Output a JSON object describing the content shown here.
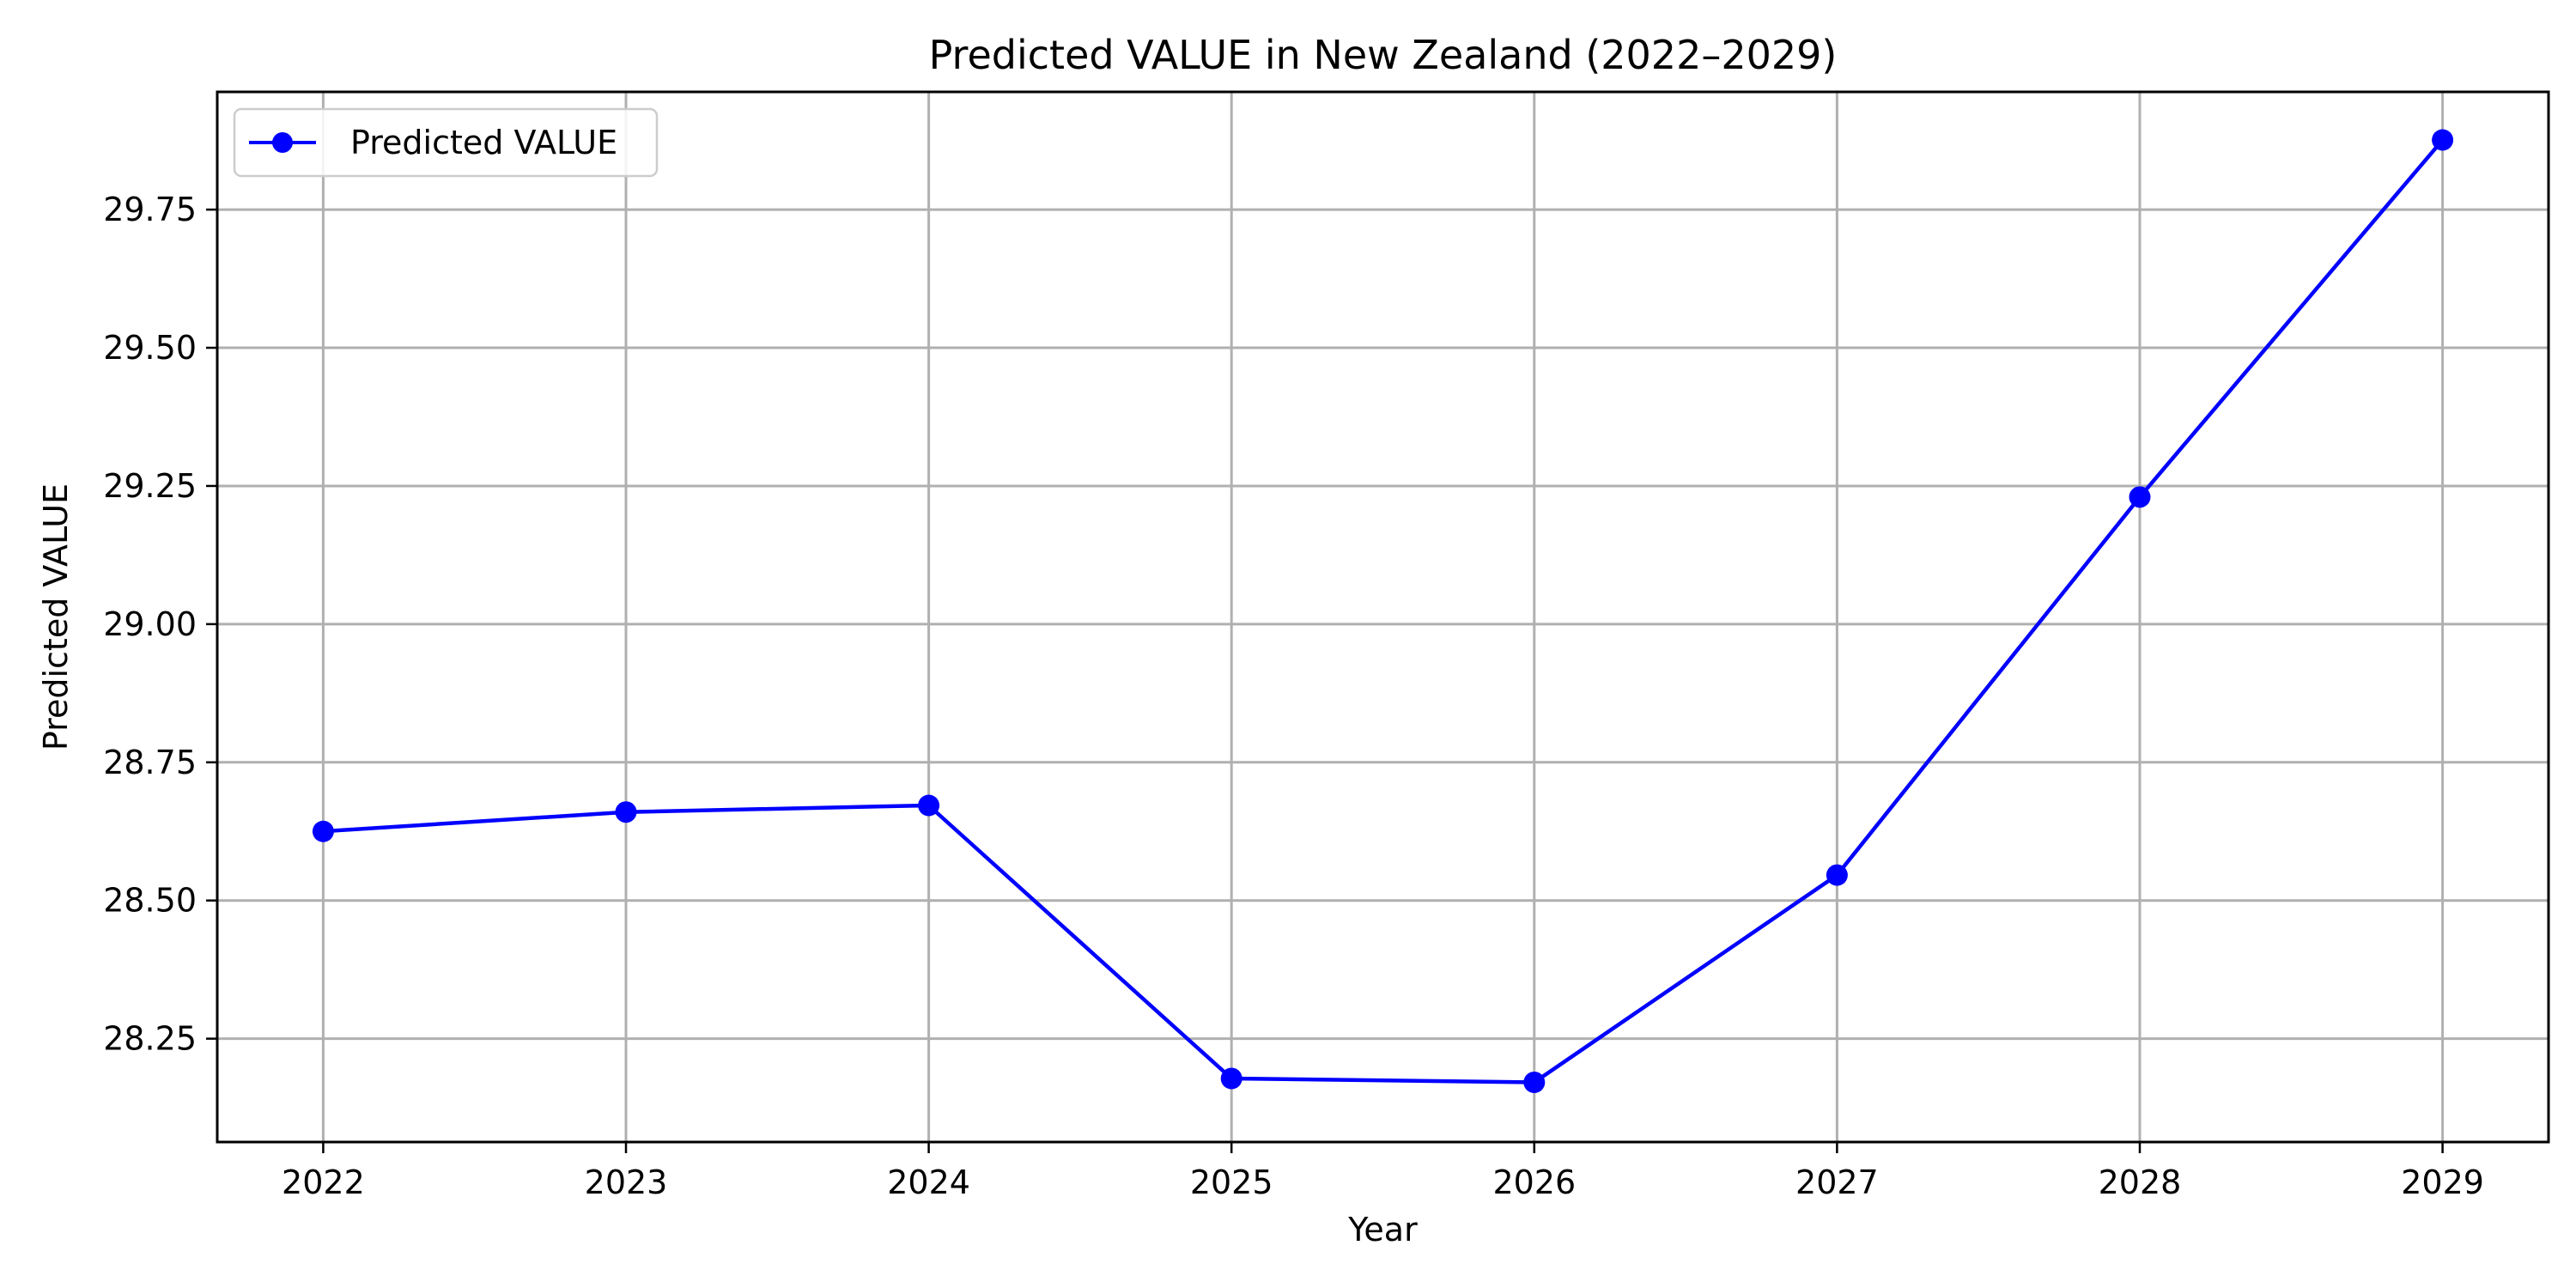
{
  "chart_data": {
    "type": "line",
    "title": "Predicted VALUE in New Zealand (2022–2029)",
    "xlabel": "Year",
    "ylabel": "Predicted VALUE",
    "x": [
      2022,
      2023,
      2024,
      2025,
      2026,
      2027,
      2028,
      2029
    ],
    "x_tick_labels": [
      "2022",
      "2023",
      "2024",
      "2025",
      "2026",
      "2027",
      "2028",
      "2029"
    ],
    "xlim": [
      2021.65,
      2029.35
    ],
    "ylim": [
      28.063,
      29.963
    ],
    "y_ticks": [
      28.25,
      28.5,
      28.75,
      29.0,
      29.25,
      29.5,
      29.75
    ],
    "y_tick_labels": [
      "28.25",
      "28.50",
      "28.75",
      "29.00",
      "29.25",
      "29.50",
      "29.75"
    ],
    "grid": true,
    "legend_position": "top-left",
    "series": [
      {
        "name": "Predicted VALUE",
        "color": "#0000ff",
        "marker": "circle",
        "values": [
          28.625,
          28.66,
          28.672,
          28.178,
          28.171,
          28.546,
          29.23,
          29.876
        ]
      }
    ]
  }
}
